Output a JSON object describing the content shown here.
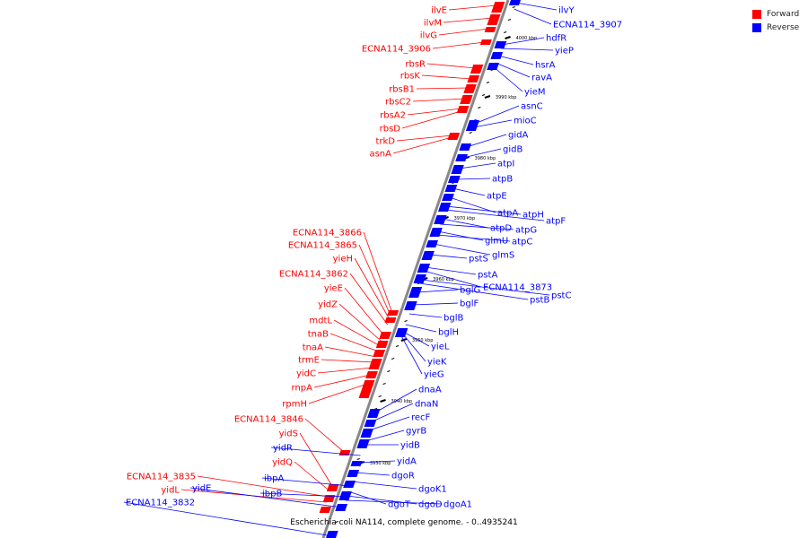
{
  "legend": {
    "forward": {
      "label": "Forward",
      "color": "#ff0000"
    },
    "reverse": {
      "label": "Reverse",
      "color": "#0000ff"
    }
  },
  "caption": "Escherichia coli NA114, complete genome. - 0..4935241",
  "ticks": [
    "4000 kbp",
    "3990 kbp",
    "3980 kbp",
    "3970 kbp",
    "3960 kbp",
    "3950 kbp",
    "3940 kbp",
    "3930 kbp"
  ],
  "forward_genes": [
    "ilvE",
    "ilvM",
    "ilvG",
    "ECNA114_3906",
    "rbsR",
    "rbsK",
    "rbsB1",
    "rbsC2",
    "rbsA2",
    "rbsD",
    "trkD",
    "asnA",
    "ECNA114_3866",
    "ECNA114_3865",
    "yieH",
    "ECNA114_3862",
    "yieE",
    "yidZ",
    "mdtL",
    "tnaB",
    "tnaA",
    "trmE",
    "yidC",
    "rnpA",
    "rpmH",
    "ECNA114_3846",
    "yidS",
    "yidQ",
    "ECNA114_3835",
    "yidL"
  ],
  "reverse_genes": [
    "ilvY",
    "ECNA114_3907",
    "hdfR",
    "yieP",
    "hsrA",
    "ravA",
    "yieM",
    "asnC",
    "mioC",
    "gidA",
    "gidB",
    "atpI",
    "atpB",
    "atpE",
    "atpA",
    "atpH",
    "atpF",
    "atpD",
    "atpG",
    "glmU",
    "atpC",
    "glmS",
    "pstS",
    "pstA",
    "ECNA114_3873",
    "pstC",
    "bglG",
    "pstB",
    "bglF",
    "bglB",
    "bglH",
    "yieL",
    "yieK",
    "yieG",
    "dnaA",
    "dnaN",
    "recF",
    "gyrB",
    "yidB",
    "yidA",
    "dgoR",
    "dgoK1",
    "dgoT",
    "dgoD",
    "dgoA1",
    "yidR",
    "ibpA",
    "ibpB",
    "yidE",
    "ECNA114_3832"
  ]
}
